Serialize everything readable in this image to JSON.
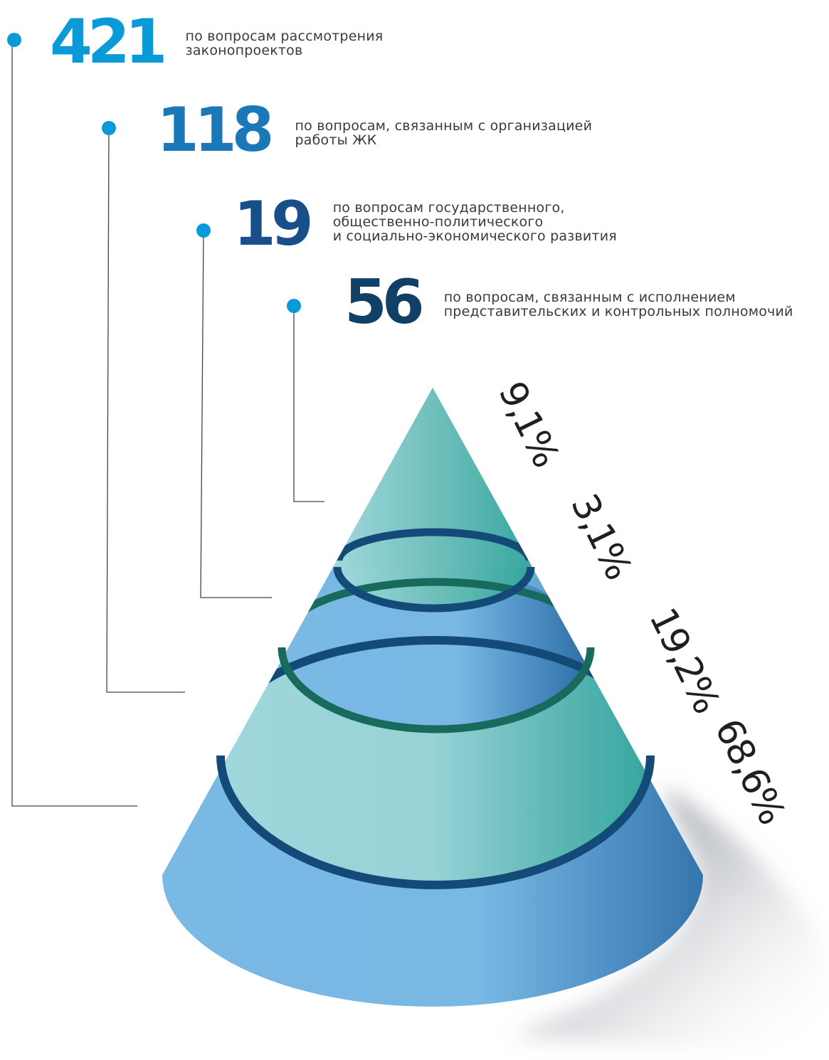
{
  "chart_data": {
    "type": "pie",
    "title": "",
    "unit": "%",
    "series": [
      {
        "value": 421,
        "pct": 68.6,
        "pct_label": "68,6%",
        "label_lines": [
          "по вопросам рассмотрения",
          "законопроектов"
        ]
      },
      {
        "value": 118,
        "pct": 19.2,
        "pct_label": "19,2%",
        "label_lines": [
          "по вопросам, связанным с организацией",
          "работы ЖК"
        ]
      },
      {
        "value": 19,
        "pct": 3.1,
        "pct_label": "3,1%",
        "label_lines": [
          "по вопросам государственного,",
          "общественно-политического",
          "и социально-экономического развития"
        ]
      },
      {
        "value": 56,
        "pct": 9.1,
        "pct_label": "9,1%",
        "label_lines": [
          "по вопросам, связанным с исполнением",
          "представительских и контрольных полномочий"
        ]
      }
    ]
  },
  "colors": {
    "number_shades": [
      "#0a9ad8",
      "#1a78b8",
      "#164f8a",
      "#114066"
    ],
    "dot": "#0a9ad8",
    "blue_band": "#7ab9e4",
    "teal_band": "#9dd6da",
    "ring_dark": "#134a78",
    "ring_green": "#176a5c",
    "connector": "#444444"
  }
}
